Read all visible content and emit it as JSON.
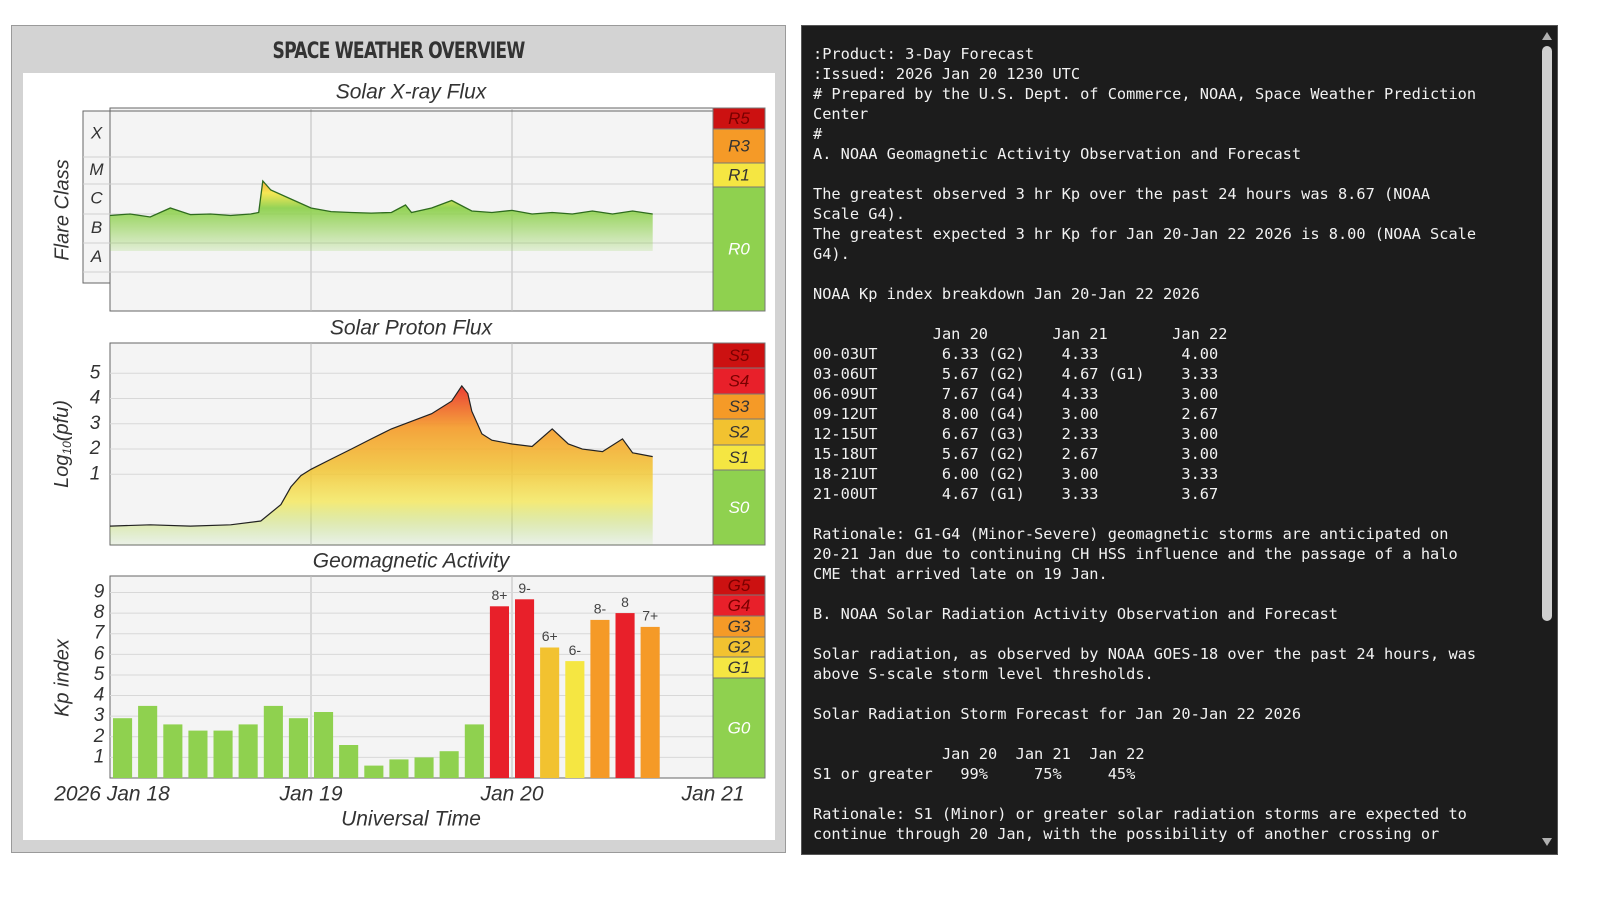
{
  "title": "SPACE WEATHER OVERVIEW",
  "colors": {
    "green": "#8fd14f",
    "yellow": "#f5e642",
    "gold": "#f2c230",
    "orange": "#f59a27",
    "red": "#e8202a",
    "darkred": "#cc1111"
  },
  "chart_data": [
    {
      "type": "area",
      "title": "Solar X-ray Flux",
      "ylabel": "Flare Class",
      "yticks": [
        "A",
        "B",
        "C",
        "M",
        "X"
      ],
      "scale_bar": [
        {
          "label": "R5",
          "color": "#cc1111"
        },
        {
          "label": "R3",
          "color": "#f59a27"
        },
        {
          "label": "R1",
          "color": "#f5e642"
        },
        {
          "label": "R0",
          "color": "#8fd14f"
        }
      ],
      "xlim": [
        "2026 Jan 18",
        "2026 Jan 21"
      ],
      "x": [
        0,
        0.1,
        0.2,
        0.3,
        0.4,
        0.5,
        0.6,
        0.7,
        0.74,
        0.76,
        0.8,
        0.9,
        1.0,
        1.1,
        1.2,
        1.3,
        1.4,
        1.47,
        1.5,
        1.6,
        1.7,
        1.8,
        1.9,
        2.0,
        2.1,
        2.2,
        2.3,
        2.4,
        2.5,
        2.6,
        2.7
      ],
      "y": [
        2.25,
        2.3,
        2.2,
        2.5,
        2.28,
        2.3,
        2.25,
        2.3,
        2.35,
        3.4,
        3.1,
        2.8,
        2.5,
        2.38,
        2.35,
        2.33,
        2.35,
        2.6,
        2.35,
        2.5,
        2.75,
        2.4,
        2.35,
        2.42,
        2.3,
        2.35,
        2.3,
        2.4,
        2.3,
        2.4,
        2.3
      ]
    },
    {
      "type": "area",
      "title": "Solar Proton Flux",
      "ylabel": "Log10(pfu)",
      "yticks": [
        1,
        2,
        3,
        4,
        5
      ],
      "ylim": [
        -1.8,
        6.2
      ],
      "scale_bar": [
        {
          "label": "S5",
          "color": "#cc1111"
        },
        {
          "label": "S4",
          "color": "#e8202a"
        },
        {
          "label": "S3",
          "color": "#f59a27"
        },
        {
          "label": "S2",
          "color": "#f2c230"
        },
        {
          "label": "S1",
          "color": "#f5e642"
        },
        {
          "label": "S0",
          "color": "#8fd14f"
        }
      ],
      "xlim": [
        "2026 Jan 18",
        "2026 Jan 21"
      ],
      "x": [
        0,
        0.2,
        0.4,
        0.6,
        0.75,
        0.85,
        0.9,
        0.95,
        1.0,
        1.1,
        1.2,
        1.3,
        1.4,
        1.5,
        1.6,
        1.7,
        1.75,
        1.78,
        1.8,
        1.85,
        1.9,
        2.0,
        2.1,
        2.2,
        2.28,
        2.35,
        2.45,
        2.55,
        2.6,
        2.7
      ],
      "y": [
        -1.05,
        -1.0,
        -1.05,
        -1.0,
        -0.85,
        -0.2,
        0.5,
        0.95,
        1.2,
        1.6,
        2.0,
        2.4,
        2.8,
        3.1,
        3.4,
        3.9,
        4.5,
        4.2,
        3.5,
        2.6,
        2.35,
        2.2,
        2.1,
        2.8,
        2.2,
        2.0,
        1.9,
        2.4,
        1.85,
        1.7
      ]
    },
    {
      "type": "bar",
      "title": "Geomagnetic Activity",
      "ylabel": "Kp index",
      "xlabel": "Universal Time",
      "yticks": [
        1,
        2,
        3,
        4,
        5,
        6,
        7,
        8,
        9
      ],
      "ylim": [
        0,
        9.8
      ],
      "xtick_labels": [
        "2026 Jan 18",
        "Jan 19",
        "Jan 20",
        "Jan 21"
      ],
      "scale_bar": [
        {
          "label": "G5",
          "color": "#cc1111"
        },
        {
          "label": "G4",
          "color": "#e8202a"
        },
        {
          "label": "G3",
          "color": "#f59a27"
        },
        {
          "label": "G2",
          "color": "#f2c230"
        },
        {
          "label": "G1",
          "color": "#f5e642"
        },
        {
          "label": "G0",
          "color": "#8fd14f"
        }
      ],
      "values": [
        2.9,
        3.5,
        2.6,
        2.3,
        2.3,
        2.6,
        3.5,
        2.9,
        3.2,
        1.6,
        0.6,
        0.9,
        1.0,
        1.3,
        2.6,
        8.33,
        8.67,
        6.33,
        5.67,
        7.67,
        8.0,
        7.33
      ],
      "labels": [
        "",
        "",
        "",
        "",
        "",
        "",
        "",
        "",
        "",
        "",
        "",
        "",
        "",
        "",
        "",
        "8+",
        "9-",
        "6+",
        "6-",
        "8-",
        "8",
        "7+"
      ]
    }
  ],
  "bulletin": {
    "text": ":Product: 3-Day Forecast\n:Issued: 2026 Jan 20 1230 UTC\n# Prepared by the U.S. Dept. of Commerce, NOAA, Space Weather Prediction\nCenter\n#\nA. NOAA Geomagnetic Activity Observation and Forecast\n\nThe greatest observed 3 hr Kp over the past 24 hours was 8.67 (NOAA\nScale G4).\nThe greatest expected 3 hr Kp for Jan 20-Jan 22 2026 is 8.00 (NOAA Scale\nG4).\n\nNOAA Kp index breakdown Jan 20-Jan 22 2026\n\n             Jan 20       Jan 21       Jan 22\n00-03UT       6.33 (G2)    4.33         4.00\n03-06UT       5.67 (G2)    4.67 (G1)    3.33\n06-09UT       7.67 (G4)    4.33         3.00\n09-12UT       8.00 (G4)    3.00         2.67\n12-15UT       6.67 (G3)    2.33         3.00\n15-18UT       5.67 (G2)    2.67         3.00\n18-21UT       6.00 (G2)    3.00         3.33\n21-00UT       4.67 (G1)    3.33         3.67\n\nRationale: G1-G4 (Minor-Severe) geomagnetic storms are anticipated on\n20-21 Jan due to continuing CH HSS influence and the passage of a halo\nCME that arrived late on 19 Jan.\n\nB. NOAA Solar Radiation Activity Observation and Forecast\n\nSolar radiation, as observed by NOAA GOES-18 over the past 24 hours, was\nabove S-scale storm level thresholds.\n\nSolar Radiation Storm Forecast for Jan 20-Jan 22 2026\n\n              Jan 20  Jan 21  Jan 22\nS1 or greater   99%     75%     45%\n\nRationale: S1 (Minor) or greater solar radiation storms are expected to\ncontinue through 20 Jan, with the possibility of another crossing or"
  }
}
